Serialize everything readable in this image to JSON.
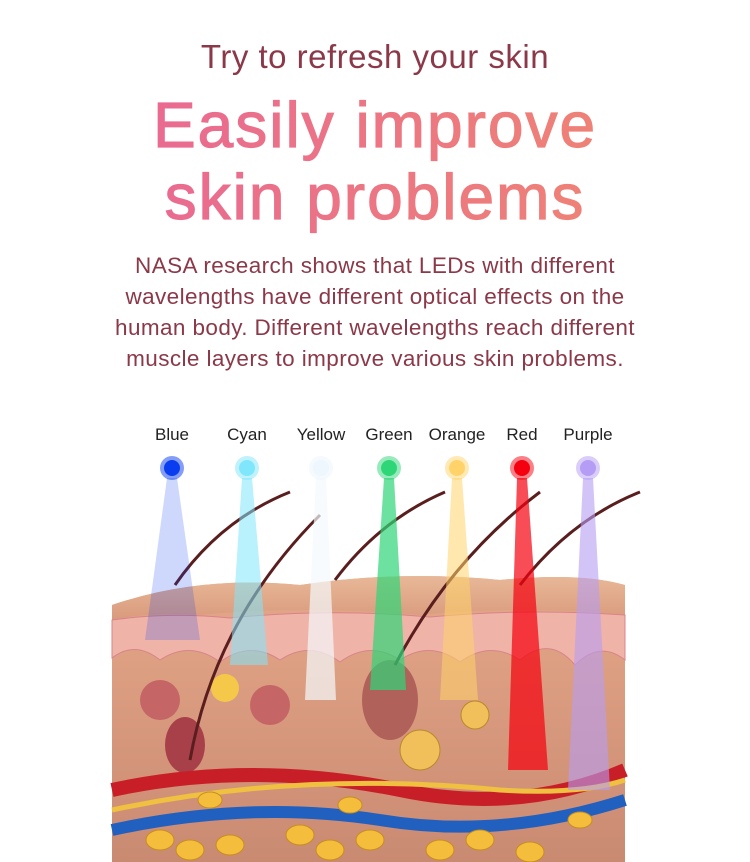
{
  "header": {
    "subtitle": "Try to refresh your skin",
    "title_line1": "Easily improve",
    "title_line2": "skin problems"
  },
  "description": "NASA research shows that LEDs with different wavelengths have different optical effects on the human body. Different wavelengths reach different muscle layers to improve various skin problems.",
  "lights": [
    {
      "label": "Blue",
      "color": "#0a3cf0"
    },
    {
      "label": "Cyan",
      "color": "#7fe6fb"
    },
    {
      "label": "Yellow",
      "color": "#eef7fd"
    },
    {
      "label": "Green",
      "color": "#2fd678"
    },
    {
      "label": "Orange",
      "color": "#ffd36a"
    },
    {
      "label": "Red",
      "color": "#f5000e"
    },
    {
      "label": "Purple",
      "color": "#b59cf4"
    }
  ],
  "colors": {
    "title_start": "#e8629a",
    "title_end": "#ee8276",
    "text": "#8b3848"
  }
}
